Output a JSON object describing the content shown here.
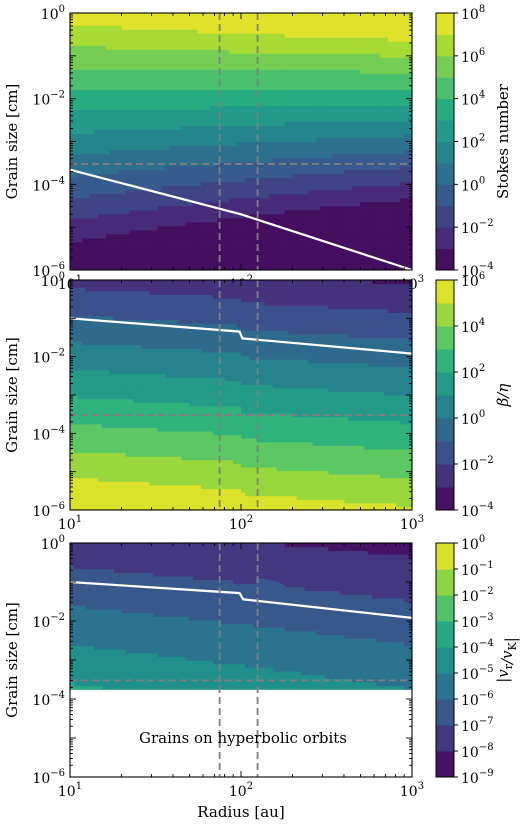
{
  "chart_data": [
    {
      "type": "heatmap",
      "panel": "top",
      "xscale": "log",
      "yscale": "log",
      "xlim": [
        10,
        1000
      ],
      "ylim": [
        1e-06,
        1
      ],
      "x_ticks": [
        {
          "b": "10",
          "e": "1"
        },
        {
          "b": "10",
          "e": "2"
        },
        {
          "b": "10",
          "e": "3"
        }
      ],
      "y_ticks": [
        {
          "b": "10",
          "e": "−6"
        },
        {
          "b": "10",
          "e": "−4"
        },
        {
          "b": "10",
          "e": "−2"
        },
        {
          "b": "10",
          "e": "0"
        }
      ],
      "ylabel": "Grain size [cm]",
      "xlabel": "",
      "colorbar": {
        "label": "Stokes number",
        "log_min": -4,
        "log_max": 8,
        "tick_step": 2,
        "levels": [
          -4,
          -3,
          -2,
          -1,
          0,
          1,
          2,
          3,
          4,
          5,
          6,
          7,
          8
        ],
        "ticks": [
          {
            "b": "10",
            "e": "−4"
          },
          {
            "b": "10",
            "e": "−2"
          },
          {
            "b": "10",
            "e": "0"
          },
          {
            "b": "10",
            "e": "2"
          },
          {
            "b": "10",
            "e": "4"
          },
          {
            "b": "10",
            "e": "6"
          },
          {
            "b": "10",
            "e": "8"
          }
        ]
      },
      "field": {
        "bl": -4.3,
        "br": -7.5,
        "tl": 7.5,
        "tr": 8.7,
        "break_x": 100,
        "jump": 0.0
      },
      "white_contour": {
        "value_label": "1",
        "points": [
          [
            10,
            0.00022
          ],
          [
            100,
            2e-05
          ],
          [
            1000,
            1e-06
          ]
        ]
      },
      "dashed_vertical_x": [
        75,
        125
      ],
      "dashed_horizontal_y": [
        0.0003
      ],
      "annotation": ""
    },
    {
      "type": "heatmap",
      "panel": "middle",
      "xscale": "log",
      "yscale": "log",
      "xlim": [
        10,
        1000
      ],
      "ylim": [
        1e-06,
        1
      ],
      "x_ticks": [
        {
          "b": "10",
          "e": "1"
        },
        {
          "b": "10",
          "e": "2"
        },
        {
          "b": "10",
          "e": "3"
        }
      ],
      "y_ticks": [
        {
          "b": "10",
          "e": "−6"
        },
        {
          "b": "10",
          "e": "−4"
        },
        {
          "b": "10",
          "e": "−2"
        },
        {
          "b": "10",
          "e": "0"
        }
      ],
      "ylabel": "Grain size [cm]",
      "xlabel": "",
      "colorbar": {
        "label": "β/η",
        "log_min": -4,
        "log_max": 6,
        "tick_step": 2,
        "levels": [
          -4,
          -3,
          -2,
          -1,
          0,
          1,
          2,
          3,
          4,
          5,
          6
        ],
        "ticks": [
          {
            "b": "10",
            "e": "−4"
          },
          {
            "b": "10",
            "e": "−2"
          },
          {
            "b": "10",
            "e": "0"
          },
          {
            "b": "10",
            "e": "2"
          },
          {
            "b": "10",
            "e": "4"
          },
          {
            "b": "10",
            "e": "6"
          }
        ]
      },
      "field": {
        "bl": 6.2,
        "br": 5.3,
        "tl": -2.3,
        "tr": -3.0,
        "break_x": 100,
        "jump": -0.15
      },
      "white_contour": {
        "value_label": "1",
        "points": [
          [
            10,
            0.1
          ],
          [
            98,
            0.045
          ],
          [
            102,
            0.03
          ],
          [
            1000,
            0.012
          ]
        ]
      },
      "dashed_vertical_x": [
        75,
        125
      ],
      "dashed_horizontal_y": [
        0.0003
      ],
      "annotation": ""
    },
    {
      "type": "heatmap",
      "panel": "bottom",
      "xscale": "log",
      "yscale": "log",
      "xlim": [
        10,
        1000
      ],
      "ylim": [
        1e-06,
        1
      ],
      "x_ticks": [
        {
          "b": "10",
          "e": "1"
        },
        {
          "b": "10",
          "e": "2"
        },
        {
          "b": "10",
          "e": "3"
        }
      ],
      "y_ticks": [
        {
          "b": "10",
          "e": "−6"
        },
        {
          "b": "10",
          "e": "−4"
        },
        {
          "b": "10",
          "e": "−2"
        },
        {
          "b": "10",
          "e": "0"
        }
      ],
      "ylabel": "Grain size [cm]",
      "xlabel": "Radius [au]",
      "colorbar": {
        "label": "|v_r/v_K|",
        "log_min": -9,
        "log_max": 0,
        "tick_step": 1,
        "levels": [
          -9,
          -8,
          -7,
          -6,
          -5,
          -4,
          -3,
          -2,
          -1,
          0
        ],
        "ticks": [
          {
            "b": "10",
            "e": "−9"
          },
          {
            "b": "10",
            "e": "−8"
          },
          {
            "b": "10",
            "e": "−7"
          },
          {
            "b": "10",
            "e": "−6"
          },
          {
            "b": "10",
            "e": "−5"
          },
          {
            "b": "10",
            "e": "−4"
          },
          {
            "b": "10",
            "e": "−3"
          },
          {
            "b": "10",
            "e": "−2"
          },
          {
            "b": "10",
            "e": "−1"
          },
          {
            "b": "10",
            "e": "0"
          }
        ]
      },
      "field": {
        "bl": -1.6,
        "br": -3.0,
        "tl": -7.6,
        "tr": -8.3,
        "break_x": 100,
        "jump": 0.0
      },
      "hyperbolic_cut_y": 0.00016,
      "white_contour": {
        "value_label": "",
        "points": [
          [
            10,
            0.1
          ],
          [
            98,
            0.052
          ],
          [
            103,
            0.036
          ],
          [
            1000,
            0.012
          ]
        ]
      },
      "blob": {
        "center": [
          140,
          0.07
        ],
        "value": -6.5
      },
      "dashed_vertical_x": [
        75,
        125
      ],
      "dashed_horizontal_y": [
        0.0003
      ],
      "annotation": "Grains on hyperbolic orbits"
    }
  ]
}
